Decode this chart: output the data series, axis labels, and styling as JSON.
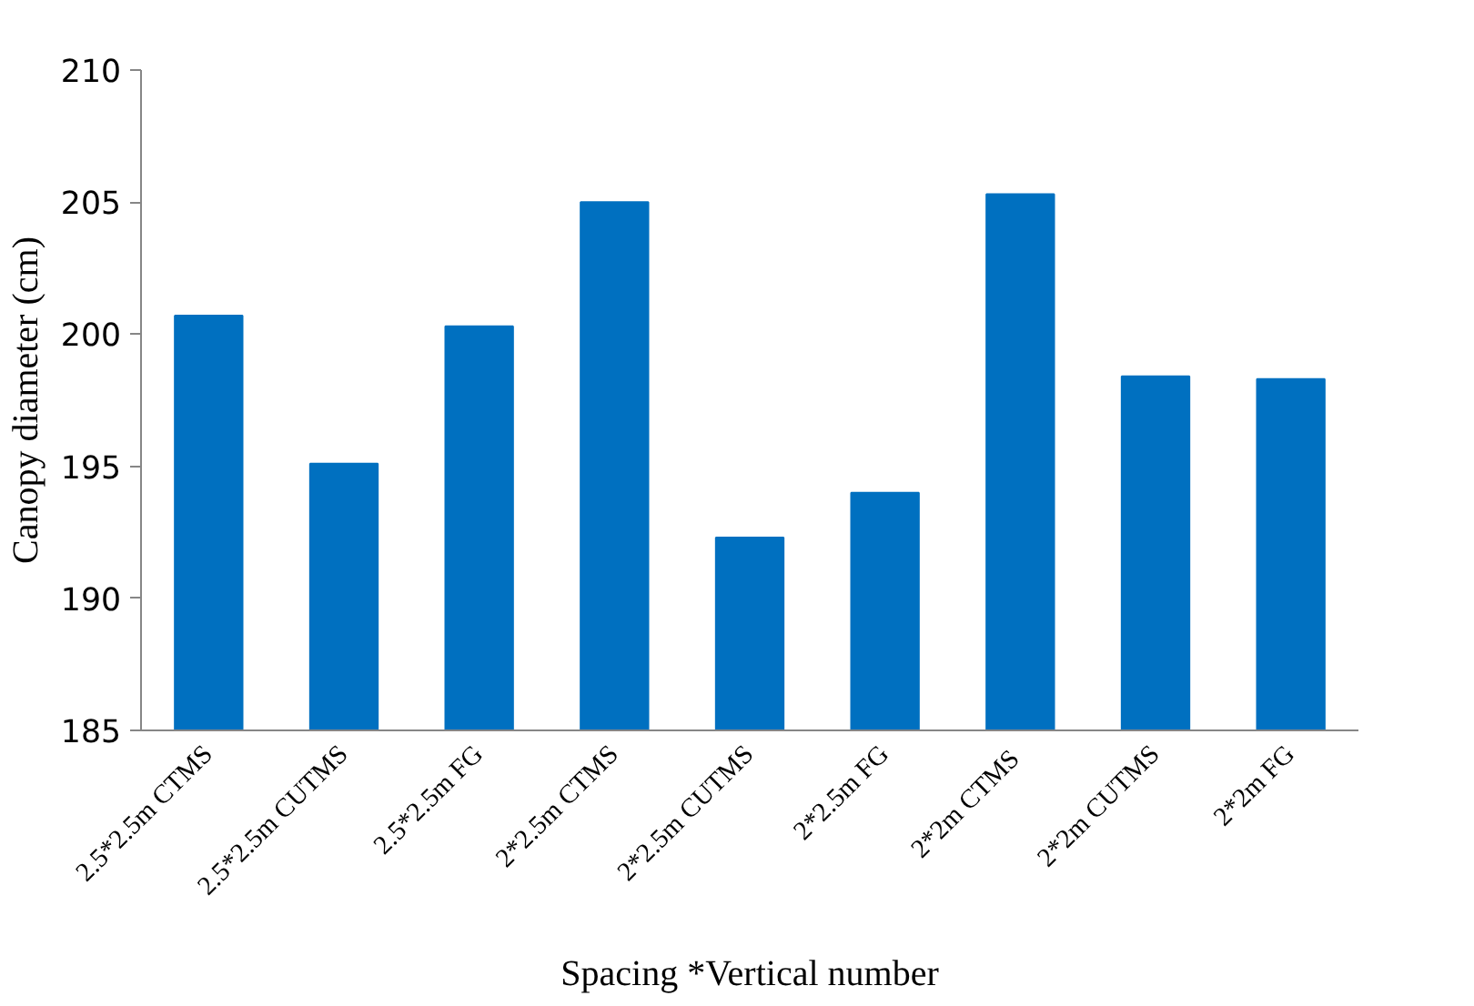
{
  "chart_data": {
    "type": "bar",
    "xlabel": "Spacing *Vertical number",
    "ylabel": "Canopy diameter (cm)",
    "categories": [
      "2.5*2.5m CTMS",
      "2.5*2.5m CUTMS",
      "2.5*2.5m FG",
      "2*2.5m CTMS",
      "2*2.5m CUTMS",
      "2*2.5m FG",
      "2*2m  CTMS",
      "2*2m CUTMS",
      "2*2m FG"
    ],
    "values": [
      200.7,
      195.1,
      200.3,
      205.0,
      192.3,
      194.0,
      205.3,
      198.4,
      198.3
    ],
    "color": "#0070c0",
    "ylim": [
      185,
      210
    ],
    "yticks": [
      185,
      190,
      195,
      200,
      205,
      210
    ],
    "grid": false
  }
}
